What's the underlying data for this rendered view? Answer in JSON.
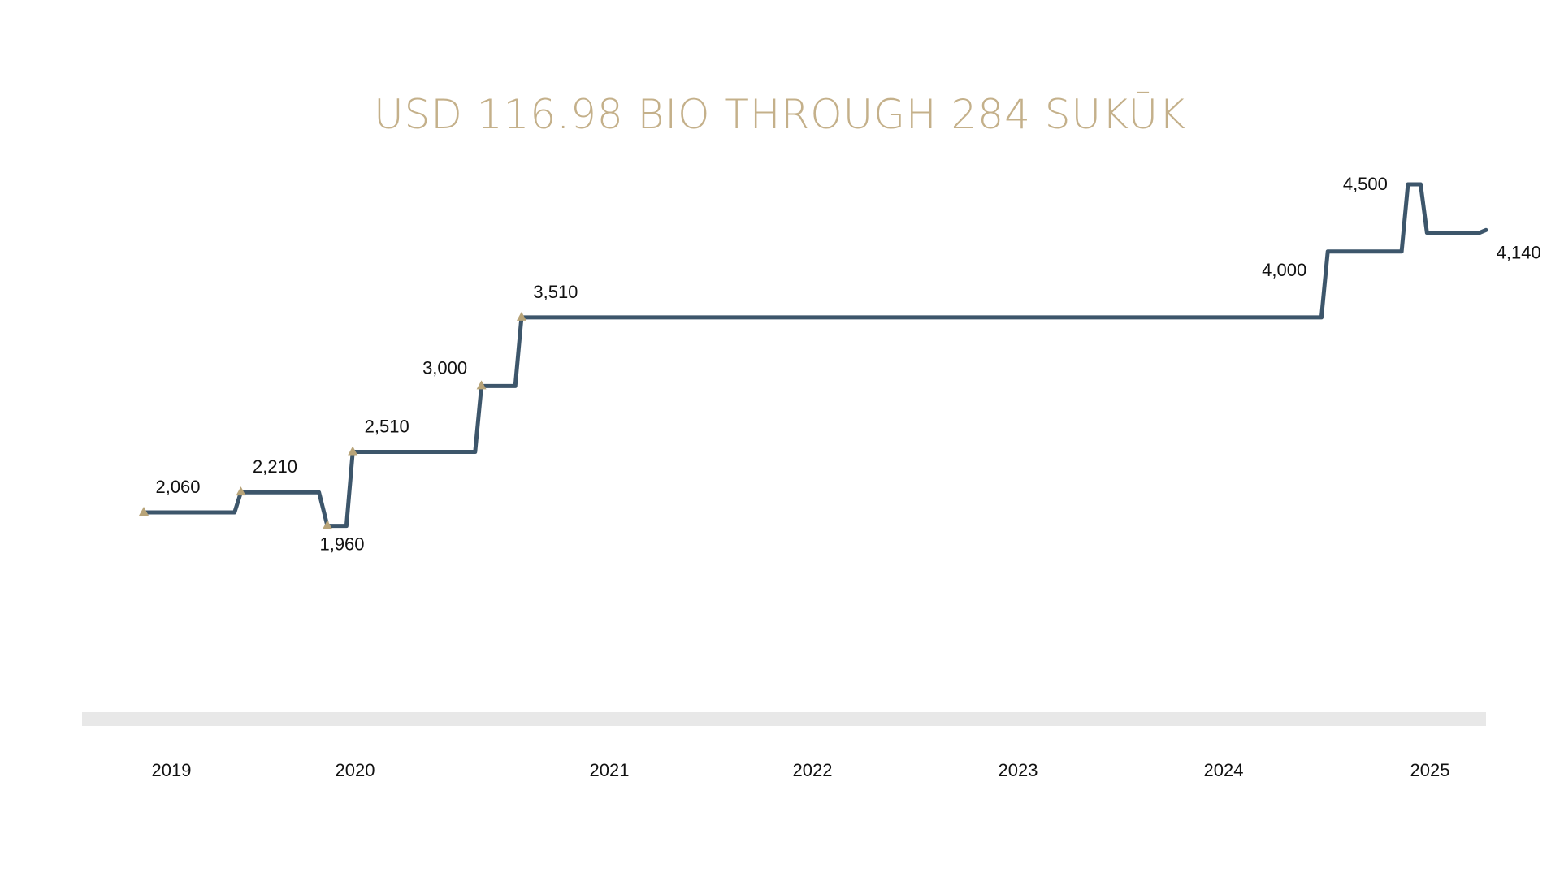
{
  "title": "USD 116.98 BIO THROUGH 284 SUKŪK",
  "colors": {
    "title": "#c4b08a",
    "line": "#3d566b",
    "marker": "#b8a479",
    "axis_band": "#e8e8e8",
    "text": "#111111"
  },
  "chart_data": {
    "type": "line",
    "title": "USD 116.98 BIO THROUGH 284 SUKŪK",
    "x_ticks": [
      "2019",
      "2020",
      "2021",
      "2022",
      "2023",
      "2024",
      "2025"
    ],
    "series": [
      {
        "values": [
          2060,
          2060,
          2210,
          2210,
          1960,
          1960,
          2510,
          2510,
          3000,
          3000,
          3510,
          3510,
          4000,
          4000,
          4500,
          4500,
          4140,
          4140,
          4160
        ]
      }
    ],
    "x": [
      2018.87,
      2019.3,
      2019.33,
      2019.7,
      2019.74,
      2019.83,
      2019.86,
      2020.44,
      2020.47,
      2020.63,
      2020.66,
      2024.45,
      2024.48,
      2024.83,
      2024.86,
      2024.92,
      2024.95,
      2025.2,
      2025.23
    ],
    "value_labels": [
      {
        "text": "2,060",
        "x": 2018.87,
        "y": 2060,
        "pos": "above",
        "marker": true
      },
      {
        "text": "2,210",
        "x": 2019.33,
        "y": 2210,
        "pos": "above",
        "marker": true
      },
      {
        "text": "1,960",
        "x": 2019.74,
        "y": 1960,
        "pos": "below",
        "marker": true
      },
      {
        "text": "2,510",
        "x": 2019.86,
        "y": 2510,
        "pos": "above",
        "marker": true
      },
      {
        "text": "3,000",
        "x": 2020.47,
        "y": 3000,
        "pos": "above-left",
        "marker": true
      },
      {
        "text": "3,510",
        "x": 2020.66,
        "y": 3510,
        "pos": "above",
        "marker": true
      },
      {
        "text": "4,000",
        "x": 2024.48,
        "y": 4000,
        "pos": "left",
        "marker": false
      },
      {
        "text": "4,500",
        "x": 2024.86,
        "y": 4500,
        "pos": "left",
        "marker": false
      },
      {
        "text": "4,140",
        "x": 2025.2,
        "y": 4140,
        "pos": "below-right",
        "marker": false
      }
    ],
    "legend": "none",
    "grid": false
  }
}
